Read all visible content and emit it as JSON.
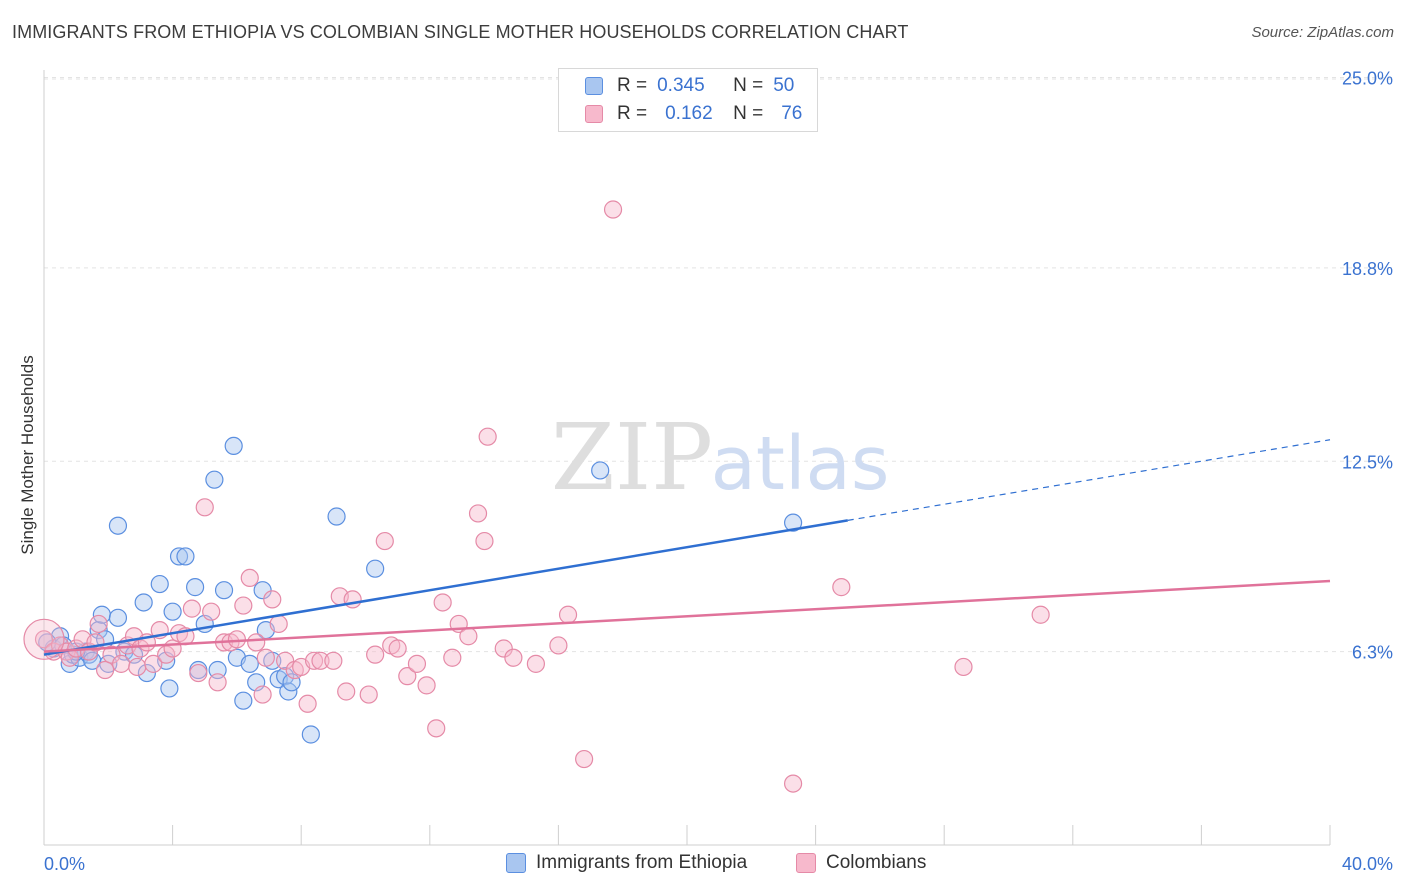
{
  "header": {
    "title": "IMMIGRANTS FROM ETHIOPIA VS COLOMBIAN SINGLE MOTHER HOUSEHOLDS CORRELATION CHART",
    "source": "Source: ZipAtlas.com"
  },
  "watermark": {
    "zip": "ZIP",
    "atlas": "atlas"
  },
  "legend": {
    "rows": [
      {
        "r_label": "R =",
        "r_value": "0.345",
        "n_label": "N =",
        "n_value": "50"
      },
      {
        "r_label": "R =",
        "r_value": "0.162",
        "n_label": "N =",
        "n_value": "76"
      }
    ]
  },
  "bottom_legend": {
    "series_1": "Immigrants from Ethiopia",
    "series_2": "Colombians"
  },
  "colors": {
    "blue_fill": "#a9c6f0",
    "blue_stroke": "#5b8fe0",
    "blue_line": "#2f6fd1",
    "pink_fill": "#f7b9cc",
    "pink_stroke": "#e58aa7",
    "pink_line": "#e0729a",
    "axis_label": "#3a72d0",
    "grid": "#e3e3e3"
  },
  "chart_data": {
    "type": "scatter",
    "title": "IMMIGRANTS FROM ETHIOPIA VS COLOMBIAN SINGLE MOTHER HOUSEHOLDS CORRELATION CHART",
    "xlabel": "",
    "ylabel": "Single Mother Households",
    "xlim": [
      0,
      40
    ],
    "ylim": [
      0,
      26
    ],
    "x_ticks": [
      "0.0%",
      "40.0%"
    ],
    "y_ticks": [
      {
        "value": 6.3,
        "label": "6.3%"
      },
      {
        "value": 12.5,
        "label": "12.5%"
      },
      {
        "value": 18.8,
        "label": "18.8%"
      },
      {
        "value": 25.0,
        "label": "25.0%"
      }
    ],
    "grid": "horizontal dashed",
    "legend_position": "top-center",
    "series": [
      {
        "name": "Immigrants from Ethiopia",
        "color": "#a9c6f0",
        "points": [
          [
            0.3,
            6.4
          ],
          [
            0.5,
            6.8
          ],
          [
            0.6,
            6.5
          ],
          [
            0.8,
            5.9
          ],
          [
            0.9,
            6.2
          ],
          [
            1.1,
            6.1
          ],
          [
            1.3,
            6.3
          ],
          [
            1.4,
            6.2
          ],
          [
            1.5,
            6.0
          ],
          [
            1.7,
            7.0
          ],
          [
            1.8,
            7.5
          ],
          [
            1.9,
            6.7
          ],
          [
            2.0,
            5.9
          ],
          [
            2.3,
            7.4
          ],
          [
            2.3,
            10.4
          ],
          [
            2.5,
            6.3
          ],
          [
            2.8,
            6.2
          ],
          [
            3.1,
            7.9
          ],
          [
            3.2,
            5.6
          ],
          [
            3.6,
            8.5
          ],
          [
            3.8,
            6.0
          ],
          [
            3.9,
            5.1
          ],
          [
            4.0,
            7.6
          ],
          [
            4.2,
            9.4
          ],
          [
            4.4,
            9.4
          ],
          [
            4.7,
            8.4
          ],
          [
            4.8,
            5.7
          ],
          [
            5.0,
            7.2
          ],
          [
            5.3,
            11.9
          ],
          [
            5.4,
            5.7
          ],
          [
            5.6,
            8.3
          ],
          [
            5.9,
            13.0
          ],
          [
            6.0,
            6.1
          ],
          [
            6.2,
            4.7
          ],
          [
            6.4,
            5.9
          ],
          [
            6.6,
            5.3
          ],
          [
            6.8,
            8.3
          ],
          [
            6.9,
            7.0
          ],
          [
            7.1,
            6.0
          ],
          [
            7.3,
            5.4
          ],
          [
            7.5,
            5.5
          ],
          [
            7.6,
            5.0
          ],
          [
            7.7,
            5.3
          ],
          [
            8.3,
            3.6
          ],
          [
            9.1,
            10.7
          ],
          [
            10.3,
            9.0
          ],
          [
            17.3,
            12.2
          ],
          [
            23.3,
            10.5
          ],
          [
            0.1,
            6.6
          ],
          [
            1.0,
            6.3
          ]
        ]
      },
      {
        "name": "Colombians",
        "color": "#f7b9cc",
        "points": [
          [
            0.0,
            6.7
          ],
          [
            0.3,
            6.3
          ],
          [
            0.5,
            6.5
          ],
          [
            0.7,
            6.3
          ],
          [
            0.8,
            6.1
          ],
          [
            1.0,
            6.4
          ],
          [
            1.2,
            6.7
          ],
          [
            1.4,
            6.3
          ],
          [
            1.6,
            6.6
          ],
          [
            1.7,
            7.2
          ],
          [
            1.9,
            5.7
          ],
          [
            2.1,
            6.2
          ],
          [
            2.4,
            5.9
          ],
          [
            2.6,
            6.5
          ],
          [
            2.8,
            6.8
          ],
          [
            2.9,
            5.8
          ],
          [
            3.0,
            6.4
          ],
          [
            3.2,
            6.6
          ],
          [
            3.4,
            5.9
          ],
          [
            3.6,
            7.0
          ],
          [
            3.8,
            6.2
          ],
          [
            4.0,
            6.4
          ],
          [
            4.2,
            6.9
          ],
          [
            4.4,
            6.8
          ],
          [
            4.6,
            7.7
          ],
          [
            4.8,
            5.6
          ],
          [
            5.0,
            11.0
          ],
          [
            5.2,
            7.6
          ],
          [
            5.4,
            5.3
          ],
          [
            5.6,
            6.6
          ],
          [
            5.8,
            6.6
          ],
          [
            6.0,
            6.7
          ],
          [
            6.2,
            7.8
          ],
          [
            6.4,
            8.7
          ],
          [
            6.6,
            6.6
          ],
          [
            6.8,
            4.9
          ],
          [
            6.9,
            6.1
          ],
          [
            7.1,
            8.0
          ],
          [
            7.3,
            7.2
          ],
          [
            7.5,
            6.0
          ],
          [
            7.8,
            5.7
          ],
          [
            8.0,
            5.8
          ],
          [
            8.2,
            4.6
          ],
          [
            8.4,
            6.0
          ],
          [
            8.6,
            6.0
          ],
          [
            9.0,
            6.0
          ],
          [
            9.2,
            8.1
          ],
          [
            9.4,
            5.0
          ],
          [
            9.6,
            8.0
          ],
          [
            10.1,
            4.9
          ],
          [
            10.3,
            6.2
          ],
          [
            10.6,
            9.9
          ],
          [
            10.8,
            6.5
          ],
          [
            11.0,
            6.4
          ],
          [
            11.3,
            5.5
          ],
          [
            11.6,
            5.9
          ],
          [
            11.9,
            5.2
          ],
          [
            12.2,
            3.8
          ],
          [
            12.4,
            7.9
          ],
          [
            12.7,
            6.1
          ],
          [
            12.9,
            7.2
          ],
          [
            13.2,
            6.8
          ],
          [
            13.5,
            10.8
          ],
          [
            13.7,
            9.9
          ],
          [
            13.8,
            13.3
          ],
          [
            14.3,
            6.4
          ],
          [
            14.6,
            6.1
          ],
          [
            15.3,
            5.9
          ],
          [
            16.0,
            6.5
          ],
          [
            16.3,
            7.5
          ],
          [
            16.8,
            2.8
          ],
          [
            17.7,
            20.7
          ],
          [
            23.3,
            2.0
          ],
          [
            24.8,
            8.4
          ],
          [
            28.6,
            5.8
          ],
          [
            31.0,
            7.5
          ]
        ]
      }
    ],
    "trend_lines": [
      {
        "series": "Immigrants from Ethiopia",
        "x_solid": [
          0,
          25
        ],
        "x_dashed": [
          25,
          40
        ],
        "y_at_0": 6.2,
        "y_at_40": 13.2
      },
      {
        "series": "Colombians",
        "x": [
          0,
          40
        ],
        "y_at_0": 6.3,
        "y_at_40": 8.6
      }
    ]
  }
}
